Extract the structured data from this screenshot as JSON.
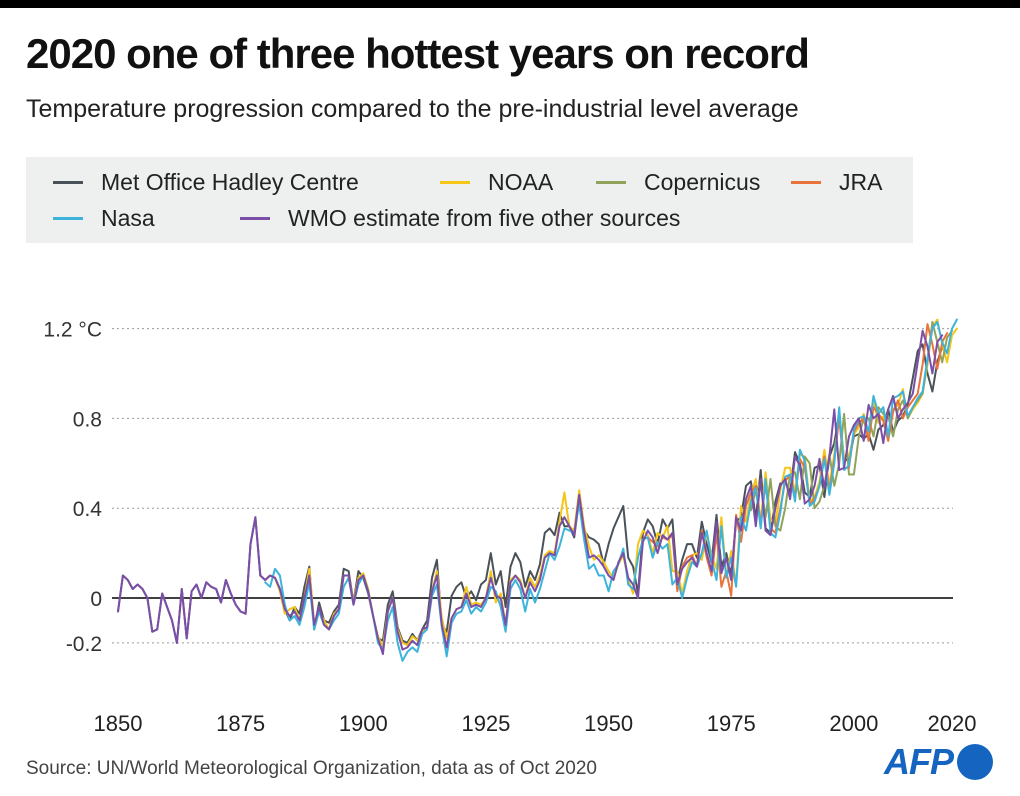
{
  "header": {
    "title": "2020 one of three hottest years on record",
    "subtitle": "Temperature progression compared to the pre-industrial level average"
  },
  "footer": {
    "source": "Source: UN/World Meteorological Organization, data as of Oct 2020",
    "logo": "AFP"
  },
  "colors": {
    "hadley": "#4a5259",
    "noaa": "#f5c518",
    "copernicus": "#8fa35a",
    "jra": "#e8743b",
    "nasa": "#3db4dc",
    "wmo": "#7b4fa8"
  },
  "legend": [
    {
      "key": "hadley",
      "label": "Met Office Hadley Centre"
    },
    {
      "key": "noaa",
      "label": "NOAA"
    },
    {
      "key": "copernicus",
      "label": "Copernicus"
    },
    {
      "key": "jra",
      "label": "JRA"
    },
    {
      "key": "nasa",
      "label": "Nasa"
    },
    {
      "key": "wmo",
      "label": "WMO estimate from five other sources"
    }
  ],
  "chart_data": {
    "type": "line",
    "title": "2020 one of three hottest years on record",
    "subtitle": "Temperature progression compared to the pre-industrial level average",
    "ylim": [
      -0.3,
      1.25
    ],
    "xlim": [
      1850,
      2020
    ],
    "y_ticks": [
      {
        "value": 1.2,
        "label": "1.2 °C"
      },
      {
        "value": 0.8,
        "label": "0.8"
      },
      {
        "value": 0.4,
        "label": "0.4"
      },
      {
        "value": 0,
        "label": "0"
      },
      {
        "value": -0.2,
        "label": "-0.2"
      }
    ],
    "x_ticks": [
      {
        "value": 1850,
        "label": "1850"
      },
      {
        "value": 1875,
        "label": "1875"
      },
      {
        "value": 1900,
        "label": "1900"
      },
      {
        "value": 1925,
        "label": "1925"
      },
      {
        "value": 1950,
        "label": "1950"
      },
      {
        "value": 1975,
        "label": "1975"
      },
      {
        "value": 2000,
        "label": "2000"
      },
      {
        "value": 2020,
        "label": "2020"
      }
    ],
    "grid": "horizontal dotted",
    "legend_position": "top",
    "series": [
      {
        "key": "hadley",
        "name": "Met Office Hadley Centre",
        "start": 1850,
        "values": [
          -0.06,
          0.1,
          0.08,
          0.04,
          0.06,
          0.04,
          0.0,
          -0.15,
          -0.14,
          0.02,
          -0.04,
          -0.1,
          -0.2,
          0.04,
          -0.18,
          0.03,
          0.06,
          0.0,
          0.07,
          0.05,
          0.04,
          -0.02,
          0.08,
          0.02,
          -0.03,
          -0.06,
          -0.07,
          0.24,
          0.36,
          0.1,
          0.08,
          0.1,
          0.09,
          0.04,
          -0.05,
          -0.1,
          -0.04,
          -0.07,
          0.05,
          0.14,
          -0.14,
          -0.02,
          -0.1,
          -0.11,
          -0.06,
          -0.03,
          0.13,
          0.12,
          -0.02,
          0.12,
          0.09,
          0.02,
          -0.08,
          -0.18,
          -0.19,
          -0.03,
          0.03,
          -0.13,
          -0.19,
          -0.2,
          -0.16,
          -0.19,
          -0.14,
          -0.1,
          0.09,
          0.17,
          -0.12,
          -0.15,
          0.01,
          0.05,
          0.07,
          0.0,
          0.03,
          -0.01,
          0.06,
          0.08,
          0.2,
          0.06,
          0.12,
          -0.04,
          0.14,
          0.2,
          0.16,
          0.05,
          0.12,
          0.08,
          0.15,
          0.29,
          0.31,
          0.28,
          0.38,
          0.32,
          0.32,
          0.27,
          0.44,
          0.3,
          0.27,
          0.26,
          0.24,
          0.15,
          0.24,
          0.31,
          0.36,
          0.41,
          0.18,
          0.14,
          0.02,
          0.29,
          0.35,
          0.32,
          0.24,
          0.35,
          0.31,
          0.35,
          0.07,
          0.17,
          0.24,
          0.24,
          0.18,
          0.34,
          0.24,
          0.16,
          0.37,
          0.14,
          0.2,
          0.1,
          0.34,
          0.36,
          0.5,
          0.52,
          0.35,
          0.57,
          0.31,
          0.29,
          0.43,
          0.51,
          0.52,
          0.47,
          0.65,
          0.6,
          0.47,
          0.45,
          0.58,
          0.59,
          0.45,
          0.63,
          0.69,
          0.82,
          0.62,
          0.61,
          0.72,
          0.73,
          0.71,
          0.73,
          0.66,
          0.75,
          0.77,
          0.84,
          0.74,
          0.79,
          0.81,
          0.86,
          0.98,
          1.1,
          1.13,
          1.0,
          0.92,
          1.05,
          1.12
        ]
      },
      {
        "key": "noaa",
        "name": "NOAA",
        "start": 1880,
        "values": [
          0.08,
          0.1,
          0.09,
          0.03,
          -0.07,
          -0.05,
          -0.04,
          -0.1,
          0.0,
          0.13,
          -0.11,
          -0.06,
          -0.1,
          -0.14,
          -0.07,
          -0.05,
          0.1,
          0.1,
          -0.02,
          0.09,
          0.11,
          0.04,
          -0.08,
          -0.17,
          -0.22,
          -0.06,
          0.0,
          -0.14,
          -0.2,
          -0.21,
          -0.17,
          -0.19,
          -0.15,
          -0.13,
          0.03,
          0.12,
          -0.09,
          -0.18,
          -0.09,
          -0.05,
          -0.04,
          0.05,
          -0.03,
          -0.02,
          -0.03,
          0.0,
          0.12,
          -0.02,
          0.02,
          -0.12,
          0.08,
          0.1,
          0.08,
          0.0,
          0.09,
          0.05,
          0.1,
          0.19,
          0.21,
          0.2,
          0.34,
          0.47,
          0.32,
          0.3,
          0.48,
          0.32,
          0.23,
          0.17,
          0.19,
          0.16,
          0.12,
          0.09,
          0.15,
          0.19,
          0.08,
          0.02,
          0.24,
          0.3,
          0.28,
          0.2,
          0.29,
          0.27,
          0.32,
          0.12,
          0.12,
          0.02,
          0.12,
          0.19,
          0.2,
          0.17,
          0.29,
          0.19,
          0.13,
          0.36,
          0.09,
          0.21,
          0.06,
          0.41,
          0.34,
          0.46,
          0.53,
          0.34,
          0.56,
          0.35,
          0.33,
          0.48,
          0.58,
          0.58,
          0.47,
          0.64,
          0.63,
          0.43,
          0.45,
          0.52,
          0.66,
          0.5,
          0.64,
          0.82,
          0.62,
          0.63,
          0.73,
          0.76,
          0.82,
          0.73,
          0.88,
          0.78,
          0.81,
          0.72,
          0.84,
          0.86,
          0.93,
          0.8,
          0.84,
          0.87,
          0.91,
          1.04,
          1.21,
          1.24,
          1.13,
          1.05,
          1.17,
          1.2
        ]
      },
      {
        "key": "copernicus",
        "name": "Copernicus",
        "start": 1979,
        "values": [
          0.39,
          0.48,
          0.51,
          0.36,
          0.53,
          0.32,
          0.3,
          0.4,
          0.55,
          0.56,
          0.44,
          0.63,
          0.6,
          0.4,
          0.43,
          0.5,
          0.64,
          0.5,
          0.6,
          0.82,
          0.55,
          0.55,
          0.72,
          0.8,
          0.8,
          0.72,
          0.85,
          0.82,
          0.81,
          0.72,
          0.84,
          0.88,
          0.8,
          0.85,
          0.88,
          0.91,
          1.06,
          1.23,
          1.14,
          1.05,
          1.16,
          1.19
        ]
      },
      {
        "key": "jra",
        "name": "JRA",
        "start": 1958,
        "values": [
          0.27,
          0.25,
          0.23,
          0.27,
          0.26,
          0.28,
          0.03,
          0.14,
          0.18,
          0.19,
          0.14,
          0.3,
          0.18,
          0.1,
          0.29,
          0.05,
          0.12,
          0.01,
          0.37,
          0.25,
          0.41,
          0.47,
          0.5,
          0.33,
          0.51,
          0.31,
          0.29,
          0.4,
          0.52,
          0.55,
          0.45,
          0.62,
          0.58,
          0.42,
          0.44,
          0.5,
          0.63,
          0.48,
          0.62,
          0.8,
          0.58,
          0.58,
          0.74,
          0.78,
          0.8,
          0.7,
          0.85,
          0.82,
          0.79,
          0.7,
          0.83,
          0.88,
          0.8,
          0.85,
          0.88,
          0.91,
          1.04,
          1.22,
          1.13,
          1.02,
          1.14,
          1.18
        ]
      },
      {
        "key": "nasa",
        "name": "Nasa",
        "start": 1880,
        "values": [
          0.07,
          0.05,
          0.13,
          0.1,
          -0.03,
          -0.1,
          -0.08,
          -0.12,
          -0.04,
          0.07,
          -0.14,
          -0.06,
          -0.12,
          -0.14,
          -0.1,
          -0.07,
          0.05,
          0.09,
          -0.03,
          0.06,
          0.1,
          0.03,
          -0.08,
          -0.2,
          -0.23,
          -0.1,
          -0.04,
          -0.2,
          -0.28,
          -0.24,
          -0.22,
          -0.24,
          -0.16,
          -0.14,
          0.01,
          0.06,
          -0.13,
          -0.26,
          -0.11,
          -0.07,
          -0.06,
          -0.01,
          -0.07,
          -0.04,
          -0.06,
          -0.02,
          0.05,
          0.03,
          -0.04,
          -0.15,
          0.04,
          0.08,
          0.04,
          -0.06,
          0.04,
          -0.02,
          0.04,
          0.12,
          0.2,
          0.17,
          0.23,
          0.31,
          0.3,
          0.29,
          0.42,
          0.26,
          0.13,
          0.15,
          0.1,
          0.1,
          0.03,
          0.12,
          0.15,
          0.22,
          0.06,
          0.04,
          0.18,
          0.26,
          0.27,
          0.18,
          0.25,
          0.22,
          0.24,
          0.06,
          0.09,
          0.0,
          0.09,
          0.16,
          0.14,
          0.2,
          0.3,
          0.17,
          0.08,
          0.32,
          0.09,
          0.18,
          0.05,
          0.36,
          0.3,
          0.43,
          0.49,
          0.31,
          0.53,
          0.29,
          0.27,
          0.38,
          0.54,
          0.55,
          0.43,
          0.66,
          0.61,
          0.41,
          0.43,
          0.5,
          0.62,
          0.46,
          0.6,
          0.85,
          0.57,
          0.59,
          0.75,
          0.8,
          0.81,
          0.74,
          0.9,
          0.82,
          0.85,
          0.72,
          0.89,
          0.9,
          0.92,
          0.81,
          0.85,
          0.89,
          0.92,
          1.07,
          1.2,
          1.23,
          1.14,
          1.09,
          1.2,
          1.24
        ]
      },
      {
        "key": "wmo",
        "name": "WMO estimate from five other sources",
        "start": 1850,
        "values": [
          -0.06,
          0.1,
          0.08,
          0.04,
          0.06,
          0.04,
          0.0,
          -0.15,
          -0.14,
          0.02,
          -0.04,
          -0.1,
          -0.2,
          0.04,
          -0.18,
          0.03,
          0.06,
          0.0,
          0.07,
          0.05,
          0.04,
          -0.02,
          0.08,
          0.02,
          -0.03,
          -0.06,
          -0.07,
          0.24,
          0.36,
          0.1,
          0.08,
          0.1,
          0.09,
          0.04,
          -0.05,
          -0.08,
          -0.06,
          -0.1,
          0.0,
          0.1,
          -0.12,
          -0.04,
          -0.12,
          -0.14,
          -0.08,
          -0.05,
          0.1,
          0.1,
          -0.03,
          0.08,
          0.1,
          0.03,
          -0.08,
          -0.18,
          -0.25,
          -0.06,
          0.0,
          -0.15,
          -0.23,
          -0.22,
          -0.19,
          -0.21,
          -0.14,
          -0.13,
          0.03,
          0.1,
          -0.12,
          -0.22,
          -0.09,
          -0.05,
          -0.04,
          0.02,
          -0.04,
          -0.03,
          -0.04,
          0.0,
          0.09,
          0.01,
          0.0,
          -0.12,
          0.07,
          0.1,
          0.07,
          0.0,
          0.07,
          0.03,
          0.08,
          0.18,
          0.2,
          0.19,
          0.32,
          0.36,
          0.32,
          0.28,
          0.46,
          0.3,
          0.18,
          0.19,
          0.17,
          0.14,
          0.1,
          0.08,
          0.16,
          0.2,
          0.09,
          0.06,
          0.0,
          0.25,
          0.3,
          0.27,
          0.2,
          0.28,
          0.26,
          0.29,
          0.06,
          0.13,
          0.16,
          0.18,
          0.14,
          0.29,
          0.2,
          0.12,
          0.34,
          0.11,
          0.18,
          0.08,
          0.36,
          0.3,
          0.44,
          0.5,
          0.32,
          0.53,
          0.3,
          0.28,
          0.4,
          0.5,
          0.53,
          0.44,
          0.63,
          0.59,
          0.42,
          0.44,
          0.5,
          0.62,
          0.49,
          0.63,
          0.84,
          0.57,
          0.58,
          0.72,
          0.77,
          0.8,
          0.7,
          0.86,
          0.8,
          0.82,
          0.69,
          0.84,
          0.9,
          0.8,
          0.84,
          0.87,
          0.91,
          1.05,
          1.19,
          1.12,
          1.0,
          1.14,
          1.17
        ]
      }
    ]
  }
}
